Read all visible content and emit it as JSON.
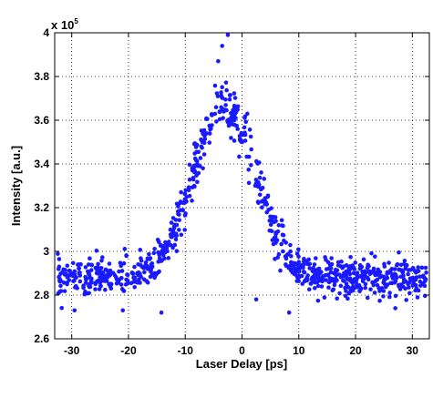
{
  "chart_data": {
    "type": "scatter",
    "xlabel": "Laser Delay [ps]",
    "ylabel": "Intensity [a.u.]",
    "y_scale_label": "x 10",
    "y_scale_exponent": "5",
    "xlim": [
      -33,
      33
    ],
    "ylim": [
      2.6,
      4.0
    ],
    "x_ticks": [
      -30,
      -20,
      -10,
      0,
      10,
      20,
      30
    ],
    "y_ticks": [
      2.6,
      2.8,
      3.0,
      3.2,
      3.4,
      3.6,
      3.8,
      4.0
    ],
    "x_tick_labels": [
      "-30",
      "-20",
      "-10",
      "0",
      "10",
      "20",
      "30"
    ],
    "y_tick_labels": [
      "2.6",
      "2.8",
      "3",
      "3.2",
      "3.4",
      "3.6",
      "3.8",
      "4"
    ],
    "grid": true,
    "marker_color": "#1a1aff",
    "profile": {
      "baseline": 2.88,
      "peak_center": -3,
      "peak_height": 0.78,
      "peak_width": 5.5,
      "noise": 0.04
    },
    "x_range": [
      -32.5,
      32.5
    ],
    "n_points": 900,
    "outliers": [
      {
        "x": -2.5,
        "y": 3.99
      },
      {
        "x": -3.5,
        "y": 3.94
      },
      {
        "x": -4.2,
        "y": 3.87
      },
      {
        "x": 2.5,
        "y": 2.78
      },
      {
        "x": 8.3,
        "y": 2.72
      },
      {
        "x": -14.2,
        "y": 2.72
      },
      {
        "x": -21,
        "y": 2.73
      },
      {
        "x": 27,
        "y": 2.74
      },
      {
        "x": -29.5,
        "y": 2.73
      }
    ]
  }
}
